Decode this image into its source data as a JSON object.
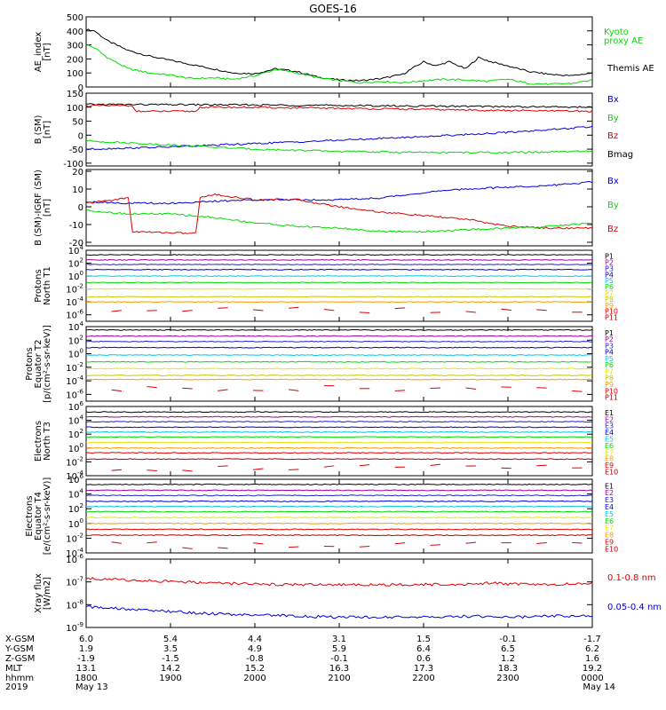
{
  "title": "GOES-16",
  "colors": {
    "black": "#000000",
    "red": "#e00000",
    "green": "#00dd00",
    "blue": "#0000dd",
    "dark_blue": "#2020cc",
    "cyan": "#00c8e8",
    "orange": "#ff9900",
    "yellow": "#e6e600",
    "olive": "#c8c800",
    "dark_red": "#b00000",
    "purple": "#a000a0"
  },
  "time_axis": {
    "range_hours": [
      18,
      24
    ],
    "tick_hours": [
      18,
      19,
      20,
      21,
      22,
      23,
      24
    ]
  },
  "orbit_table": {
    "row_labels": [
      "X-GSM",
      "Y-GSM",
      "Z-GSM",
      "MLT",
      "hhmm",
      "2019"
    ],
    "columns": [
      [
        "6.0",
        "1.9",
        "-1.9",
        "13.1",
        "1800",
        "May 13"
      ],
      [
        "5.4",
        "3.5",
        "-1.5",
        "14.2",
        "1900",
        ""
      ],
      [
        "4.4",
        "4.9",
        "-0.8",
        "15.2",
        "2000",
        ""
      ],
      [
        "3.1",
        "5.9",
        "-0.1",
        "16.3",
        "2100",
        ""
      ],
      [
        "1.5",
        "6.4",
        "0.6",
        "17.3",
        "2200",
        ""
      ],
      [
        "-0.1",
        "6.5",
        "1.2",
        "18.3",
        "2300",
        ""
      ],
      [
        "-1.7",
        "6.2",
        "1.6",
        "19.2",
        "0000",
        "May 14"
      ]
    ]
  },
  "chart_data": [
    {
      "type": "line",
      "panel": "ae",
      "ylabel": [
        "AE_index",
        "[nT]"
      ],
      "ylim": [
        0,
        500
      ],
      "yticks": [
        0,
        100,
        200,
        300,
        400,
        500
      ],
      "legend": [
        {
          "label": "Kyoto",
          "color": "green"
        },
        {
          "label": "proxy AE",
          "color": "green"
        },
        {
          "label": "Themis AE",
          "color": "black"
        }
      ],
      "series": [
        {
          "name": "Themis AE",
          "color": "black",
          "x": [
            18.0,
            18.1,
            18.25,
            18.5,
            18.75,
            19.0,
            19.25,
            19.5,
            19.75,
            20.0,
            20.25,
            20.5,
            20.75,
            21.0,
            21.25,
            21.5,
            21.75,
            22.0,
            22.15,
            22.3,
            22.5,
            22.65,
            22.8,
            23.0,
            23.25,
            23.5,
            23.75,
            24.0
          ],
          "y": [
            410,
            400,
            330,
            260,
            220,
            190,
            160,
            130,
            100,
            95,
            130,
            110,
            70,
            50,
            45,
            60,
            90,
            180,
            150,
            180,
            130,
            210,
            180,
            150,
            110,
            90,
            80,
            100
          ]
        },
        {
          "name": "Kyoto proxy AE",
          "color": "green",
          "x": [
            18.0,
            18.1,
            18.25,
            18.5,
            18.75,
            19.0,
            19.25,
            19.5,
            19.75,
            20.0,
            20.25,
            20.5,
            20.75,
            21.0,
            21.25,
            21.5,
            21.75,
            22.0,
            22.25,
            22.5,
            22.75,
            23.0,
            23.25,
            23.5,
            23.75,
            24.0
          ],
          "y": [
            300,
            280,
            210,
            130,
            100,
            85,
            60,
            65,
            55,
            80,
            125,
            100,
            65,
            45,
            30,
            40,
            30,
            45,
            55,
            50,
            40,
            55,
            25,
            20,
            25,
            50
          ]
        }
      ]
    },
    {
      "type": "line",
      "panel": "b_sm",
      "ylabel": [
        "B (SM)",
        "[nT]"
      ],
      "ylim": [
        -110,
        150
      ],
      "yticks": [
        -100,
        -50,
        0,
        50,
        100,
        150
      ],
      "legend": [
        {
          "label": "Bx",
          "color": "blue"
        },
        {
          "label": "By",
          "color": "green"
        },
        {
          "label": "Bz",
          "color": "red"
        },
        {
          "label": "Bmag",
          "color": "black"
        }
      ],
      "series": [
        {
          "name": "Bmag",
          "color": "black",
          "x": [
            18.0,
            19.0,
            20.0,
            21.0,
            22.0,
            23.0,
            24.0
          ],
          "y": [
            110,
            109,
            108,
            106,
            104,
            102,
            100
          ]
        },
        {
          "name": "Bz",
          "color": "red",
          "x": [
            18.0,
            18.55,
            18.6,
            19.3,
            19.35,
            20.0,
            21.0,
            22.0,
            23.0,
            24.0
          ],
          "y": [
            105,
            105,
            85,
            85,
            100,
            99,
            96,
            92,
            88,
            85
          ]
        },
        {
          "name": "Bx",
          "color": "blue",
          "x": [
            18.0,
            19.0,
            20.0,
            21.0,
            22.0,
            23.0,
            24.0
          ],
          "y": [
            -50,
            -42,
            -30,
            -18,
            -5,
            10,
            30
          ]
        },
        {
          "name": "By",
          "color": "green",
          "x": [
            18.0,
            19.0,
            20.0,
            21.0,
            22.0,
            23.0,
            24.0
          ],
          "y": [
            -20,
            -35,
            -50,
            -58,
            -62,
            -62,
            -58
          ]
        }
      ]
    },
    {
      "type": "line",
      "panel": "b_igrf",
      "ylabel": [
        "B (SM)-IGRF (SM)",
        "[nT]"
      ],
      "ylim": [
        -22,
        21
      ],
      "yticks": [
        -20,
        -10,
        0,
        10,
        20
      ],
      "legend": [
        {
          "label": "Bx",
          "color": "blue"
        },
        {
          "label": "By",
          "color": "green"
        },
        {
          "label": "Bz",
          "color": "red"
        }
      ],
      "series": [
        {
          "name": "Bx",
          "color": "blue",
          "x": [
            18.0,
            18.5,
            19.0,
            19.5,
            20.0,
            20.5,
            21.0,
            21.5,
            22.0,
            22.5,
            23.0,
            23.5,
            24.0
          ],
          "y": [
            3,
            2,
            2,
            3,
            4,
            4,
            4,
            5,
            8,
            10,
            11,
            12,
            14
          ]
        },
        {
          "name": "Bz",
          "color": "red",
          "x": [
            18.0,
            18.5,
            18.55,
            19.3,
            19.35,
            19.5,
            20.0,
            20.5,
            21.0,
            21.5,
            22.0,
            22.5,
            23.0,
            23.5,
            24.0
          ],
          "y": [
            2,
            5,
            -14,
            -15,
            5,
            7,
            4,
            4,
            0,
            -3,
            -5,
            -7,
            -11,
            -12,
            -12
          ]
        },
        {
          "name": "By",
          "color": "green",
          "x": [
            18.0,
            18.5,
            19.0,
            19.5,
            20.0,
            20.5,
            21.0,
            21.5,
            22.0,
            22.5,
            23.0,
            23.5,
            24.0
          ],
          "y": [
            -2,
            -4,
            -4,
            -6,
            -9,
            -11,
            -12,
            -14,
            -14,
            -13,
            -12,
            -11,
            -9
          ]
        }
      ]
    },
    {
      "type": "line",
      "panel": "protons_north",
      "ylabel": [
        "Protons",
        "North T1"
      ],
      "log": true,
      "ylim_exp": [
        -7,
        4
      ],
      "yticks_exp": [
        -6,
        -4,
        -2,
        0,
        2,
        4
      ],
      "legend": [
        {
          "label": "P1",
          "color": "black"
        },
        {
          "label": "P2",
          "color": "purple"
        },
        {
          "label": "P3",
          "color": "dark_blue"
        },
        {
          "label": "P4",
          "color": "blue"
        },
        {
          "label": "P5",
          "color": "cyan"
        },
        {
          "label": "P6",
          "color": "green"
        },
        {
          "label": "P7",
          "color": "yellow"
        },
        {
          "label": "P8",
          "color": "olive"
        },
        {
          "label": "P9",
          "color": "orange"
        },
        {
          "label": "P10",
          "color": "red"
        },
        {
          "label": "P11",
          "color": "dark_red"
        }
      ],
      "series": [
        {
          "name": "P1",
          "color": "black",
          "level_exp": 3.3
        },
        {
          "name": "P2",
          "color": "purple",
          "level_exp": 2.5
        },
        {
          "name": "P3",
          "color": "dark_blue",
          "level_exp": 1.8
        },
        {
          "name": "P4",
          "color": "blue",
          "level_exp": 1.0
        },
        {
          "name": "P5",
          "color": "cyan",
          "level_exp": 0.0
        },
        {
          "name": "P6",
          "color": "green",
          "level_exp": -1.0
        },
        {
          "name": "P7",
          "color": "yellow",
          "level_exp": -2.0
        },
        {
          "name": "P8",
          "color": "olive",
          "level_exp": -3.2
        },
        {
          "name": "P9",
          "color": "orange",
          "level_exp": -4.0
        }
      ]
    },
    {
      "type": "line",
      "panel": "protons_equator",
      "ylabel": [
        "Protons",
        "Equator T2",
        "[p/(cm²-s-sr-keV)]"
      ],
      "log": true,
      "ylim_exp": [
        -7,
        4
      ],
      "yticks_exp": [
        -6,
        -4,
        -2,
        0,
        2,
        4
      ],
      "legend": [
        {
          "label": "P1",
          "color": "black"
        },
        {
          "label": "P2",
          "color": "purple"
        },
        {
          "label": "P3",
          "color": "dark_blue"
        },
        {
          "label": "P4",
          "color": "blue"
        },
        {
          "label": "P5",
          "color": "cyan"
        },
        {
          "label": "P6",
          "color": "green"
        },
        {
          "label": "P7",
          "color": "yellow"
        },
        {
          "label": "P8",
          "color": "olive"
        },
        {
          "label": "P9",
          "color": "orange"
        },
        {
          "label": "P10",
          "color": "red"
        },
        {
          "label": "P11",
          "color": "dark_red"
        }
      ],
      "series": [
        {
          "name": "P1",
          "color": "black",
          "level_exp": 3.5
        },
        {
          "name": "P2",
          "color": "purple",
          "level_exp": 2.6
        },
        {
          "name": "P3",
          "color": "dark_blue",
          "level_exp": 1.8
        },
        {
          "name": "P4",
          "color": "blue",
          "level_exp": 0.9
        },
        {
          "name": "P5",
          "color": "cyan",
          "level_exp": -0.2
        },
        {
          "name": "P6",
          "color": "green",
          "level_exp": -1.2
        },
        {
          "name": "P7",
          "color": "yellow",
          "level_exp": -2.2
        },
        {
          "name": "P8",
          "color": "olive",
          "level_exp": -3.2
        },
        {
          "name": "P9",
          "color": "orange",
          "level_exp": -3.8
        }
      ]
    },
    {
      "type": "line",
      "panel": "electrons_north",
      "ylabel": [
        "Electrons",
        "North T3"
      ],
      "log": true,
      "ylim_exp": [
        -4,
        6
      ],
      "yticks_exp": [
        -4,
        -2,
        0,
        2,
        4,
        6
      ],
      "legend": [
        {
          "label": "E1",
          "color": "black"
        },
        {
          "label": "E2",
          "color": "purple"
        },
        {
          "label": "E3",
          "color": "dark_blue"
        },
        {
          "label": "E4",
          "color": "blue"
        },
        {
          "label": "E5",
          "color": "cyan"
        },
        {
          "label": "E6",
          "color": "green"
        },
        {
          "label": "E7",
          "color": "yellow"
        },
        {
          "label": "E8",
          "color": "orange"
        },
        {
          "label": "E9",
          "color": "red"
        },
        {
          "label": "E10",
          "color": "dark_red"
        }
      ],
      "series": [
        {
          "name": "E1",
          "color": "black",
          "level_exp": 5.2
        },
        {
          "name": "E2",
          "color": "purple",
          "level_exp": 4.5
        },
        {
          "name": "E3",
          "color": "dark_blue",
          "level_exp": 3.8
        },
        {
          "name": "E4",
          "color": "blue",
          "level_exp": 3.0
        },
        {
          "name": "E5",
          "color": "cyan",
          "level_exp": 2.3
        },
        {
          "name": "E6",
          "color": "green",
          "level_exp": 1.6
        },
        {
          "name": "E7",
          "color": "yellow",
          "level_exp": 0.8
        },
        {
          "name": "E8",
          "color": "orange",
          "level_exp": 0.0
        },
        {
          "name": "E9",
          "color": "red",
          "level_exp": -0.7
        },
        {
          "name": "E10",
          "color": "dark_red",
          "level_exp": -1.6
        }
      ]
    },
    {
      "type": "line",
      "panel": "electrons_equator",
      "ylabel": [
        "Electrons",
        "Equator T4",
        "[e/(cm²-s-sr-keV)]"
      ],
      "log": true,
      "ylim_exp": [
        -4,
        6
      ],
      "yticks_exp": [
        -4,
        -2,
        0,
        2,
        4,
        6
      ],
      "legend": [
        {
          "label": "E1",
          "color": "black"
        },
        {
          "label": "E2",
          "color": "purple"
        },
        {
          "label": "E3",
          "color": "dark_blue"
        },
        {
          "label": "E4",
          "color": "blue"
        },
        {
          "label": "E5",
          "color": "cyan"
        },
        {
          "label": "E6",
          "color": "green"
        },
        {
          "label": "E7",
          "color": "yellow"
        },
        {
          "label": "E8",
          "color": "orange"
        },
        {
          "label": "E9",
          "color": "red"
        },
        {
          "label": "E10",
          "color": "dark_red"
        }
      ],
      "series": [
        {
          "name": "E1",
          "color": "black",
          "level_exp": 5.3
        },
        {
          "name": "E2",
          "color": "purple",
          "level_exp": 4.5
        },
        {
          "name": "E3",
          "color": "dark_blue",
          "level_exp": 3.8
        },
        {
          "name": "E4",
          "color": "blue",
          "level_exp": 3.0
        },
        {
          "name": "E5",
          "color": "cyan",
          "level_exp": 2.3
        },
        {
          "name": "E6",
          "color": "green",
          "level_exp": 1.6
        },
        {
          "name": "E7",
          "color": "yellow",
          "level_exp": 0.8
        },
        {
          "name": "E8",
          "color": "orange",
          "level_exp": 0.0
        },
        {
          "name": "E9",
          "color": "red",
          "level_exp": -0.8
        },
        {
          "name": "E10",
          "color": "dark_red",
          "level_exp": -1.6
        }
      ]
    },
    {
      "type": "line",
      "panel": "xray",
      "ylabel": [
        "Xray flux",
        "[W/m2]"
      ],
      "log": true,
      "ylim_exp": [
        -9,
        -6
      ],
      "yticks_exp": [
        -9,
        -8,
        -7,
        -6
      ],
      "legend": [
        {
          "label": "0.1-0.8 nm",
          "color": "red"
        },
        {
          "label": "0.05-0.4 nm",
          "color": "blue"
        }
      ],
      "series": [
        {
          "name": "0.1-0.8 nm",
          "color": "red",
          "x": [
            18.0,
            18.5,
            19.0,
            19.5,
            20.0,
            20.5,
            21.0,
            21.5,
            22.0,
            22.5,
            22.8,
            23.0,
            23.5,
            24.0
          ],
          "y_exp": [
            -6.85,
            -6.92,
            -6.98,
            -7.05,
            -7.1,
            -7.12,
            -7.13,
            -7.13,
            -7.12,
            -7.1,
            -7.05,
            -7.1,
            -7.12,
            -7.05
          ]
        },
        {
          "name": "0.05-0.4 nm",
          "color": "blue",
          "x": [
            18.0,
            18.5,
            19.0,
            19.5,
            20.0,
            20.5,
            21.0,
            21.5,
            22.0,
            22.5,
            23.0,
            23.5,
            24.0
          ],
          "y_exp": [
            -8.1,
            -8.2,
            -8.3,
            -8.4,
            -8.45,
            -8.5,
            -8.55,
            -8.55,
            -8.55,
            -8.5,
            -8.55,
            -8.5,
            -8.5
          ]
        }
      ]
    }
  ]
}
